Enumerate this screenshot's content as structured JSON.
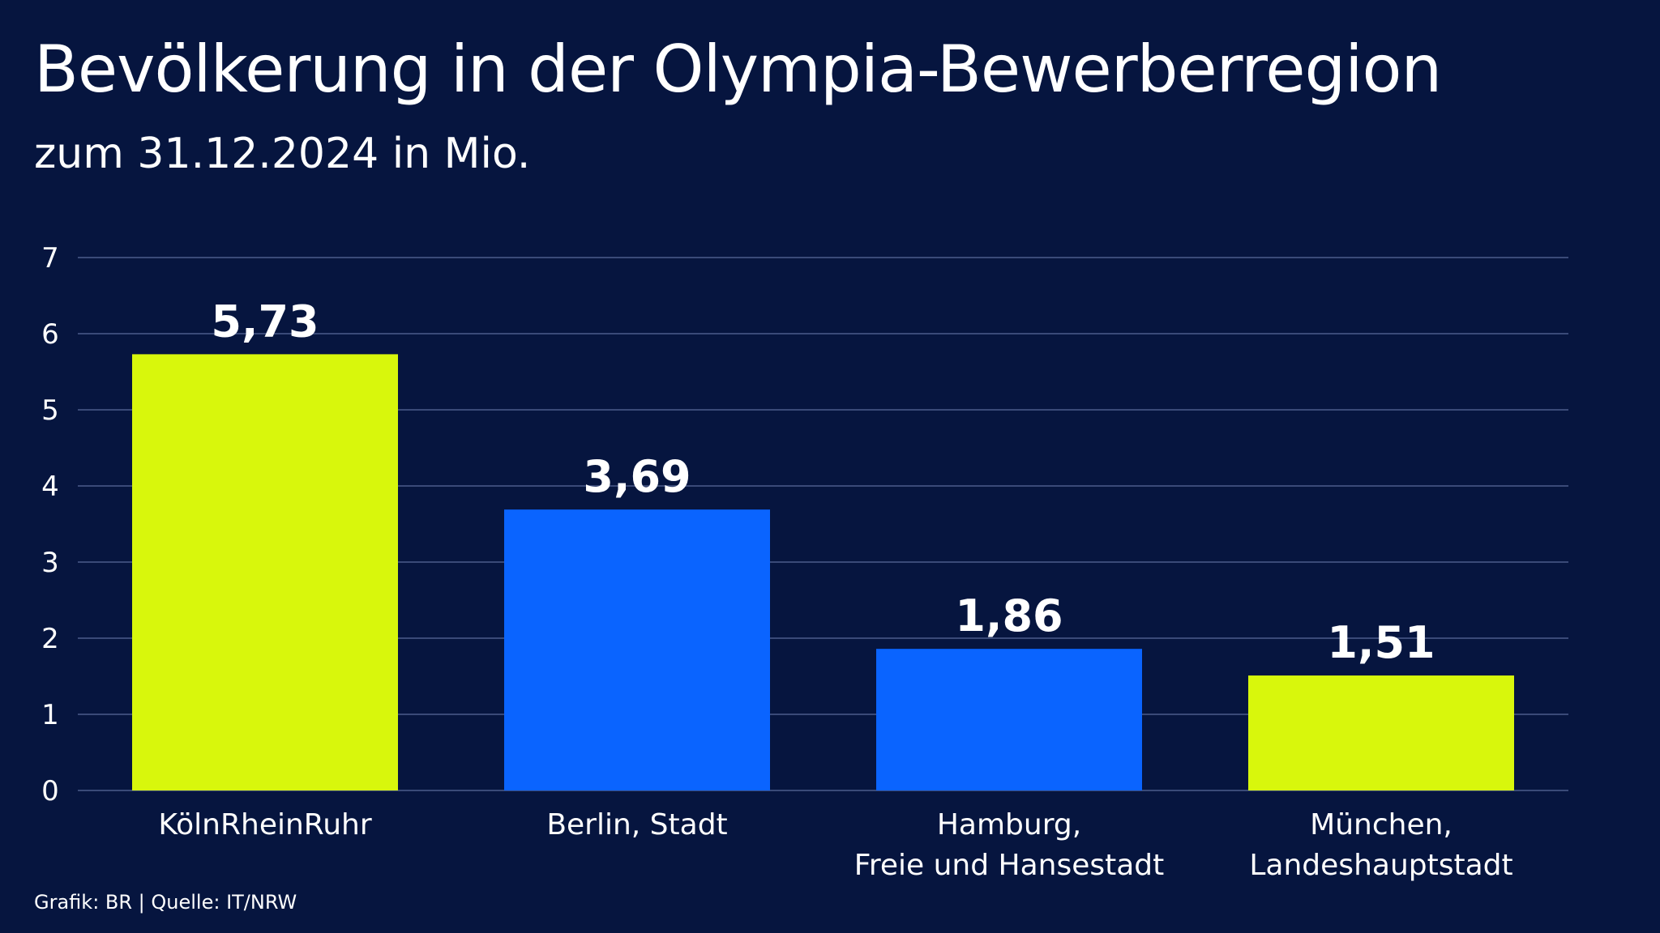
{
  "header": {
    "title": "Bevölkerung in der Olympia-Bewerberregion",
    "subtitle": "zum 31.12.2024 in Mio."
  },
  "footer": {
    "credit": "Grafik: BR | Quelle: IT/NRW"
  },
  "colors": {
    "background": "#06153f",
    "gridline": "#3a4a78",
    "yellow_green": "#d8f70c",
    "blue": "#0a64ff",
    "text": "#ffffff"
  },
  "chart_data": {
    "type": "bar",
    "categories": [
      [
        "KölnRheinRuhr"
      ],
      [
        "Berlin, Stadt"
      ],
      [
        "Hamburg,",
        "Freie und Hansestadt"
      ],
      [
        "München,",
        "Landeshauptstadt"
      ]
    ],
    "values": [
      5.73,
      3.69,
      1.86,
      1.51
    ],
    "value_labels": [
      "5,73",
      "3,69",
      "1,86",
      "1,51"
    ],
    "bar_colors": [
      "#d8f70c",
      "#0a64ff",
      "#0a64ff",
      "#d8f70c"
    ],
    "ylim": [
      0,
      7
    ],
    "yticks": [
      0,
      1,
      2,
      3,
      4,
      5,
      6,
      7
    ],
    "grid": true,
    "legend": "none",
    "xlabel": "",
    "ylabel": ""
  }
}
